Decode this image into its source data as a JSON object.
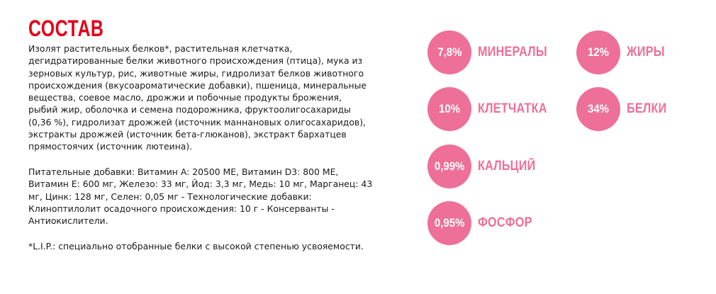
{
  "title": "СОСТАВ",
  "composition_lines": [
    "Изолят растительных белков*, растительная клетчатка,",
    "дегидратированные белки животного происхождения (птица), мука из",
    "зерновых культур, рис, животные жиры, гидролизат белков животного",
    "происхождения (вкусоароматические добавки), пшеница, минеральные",
    "вещества, соевое масло, дрожжи и побочные продукты брожения,",
    "рыбий жир, оболочка и семена подорожника, фруктоолигосахариды",
    "(0,36 %), гидролизат дрожжей (источник маннановых олигосахаридов),",
    "экстракты дрожжей (источник бета-глюканов), экстракт бархатцев",
    "прямостоячих (источник лютеина)."
  ],
  "additives_lines": [
    "Питательные добавки: Витамин A: 20500 МЕ, Витамин D3: 800 МЕ,",
    "Витамин E: 600 мг, Железо: 33 мг, Йод: 3,3 мг, Медь: 10 мг, Марганец: 43",
    "мг, Цинк: 128 мг, Селен: 0,05 мг - Технологические добавки:",
    "Клиноптилолит осадочного происхождения: 10 г - Консерванты -",
    "Антиокислители."
  ],
  "footnote": "*L.I.P.: специально отобранные белки с высокой степенью усвояемости.",
  "nutrients": {
    "minerals": {
      "value": "7,8%",
      "label": "МИНЕРАЛЫ"
    },
    "fats": {
      "value": "12%",
      "label": "ЖИРЫ"
    },
    "fiber": {
      "value": "10%",
      "label": "КЛЕТЧАТКА"
    },
    "protein": {
      "value": "34%",
      "label": "БЕЛКИ"
    },
    "calcium": {
      "value": "0,99%",
      "label": "КАЛЬЦИЙ"
    },
    "phosphorus": {
      "value": "0,95%",
      "label": "ФОСФОР"
    }
  },
  "colors": {
    "title": "#e2001a",
    "circle": "#ee6f98",
    "label": "#ee6f98",
    "text": "#1a1a1a"
  }
}
